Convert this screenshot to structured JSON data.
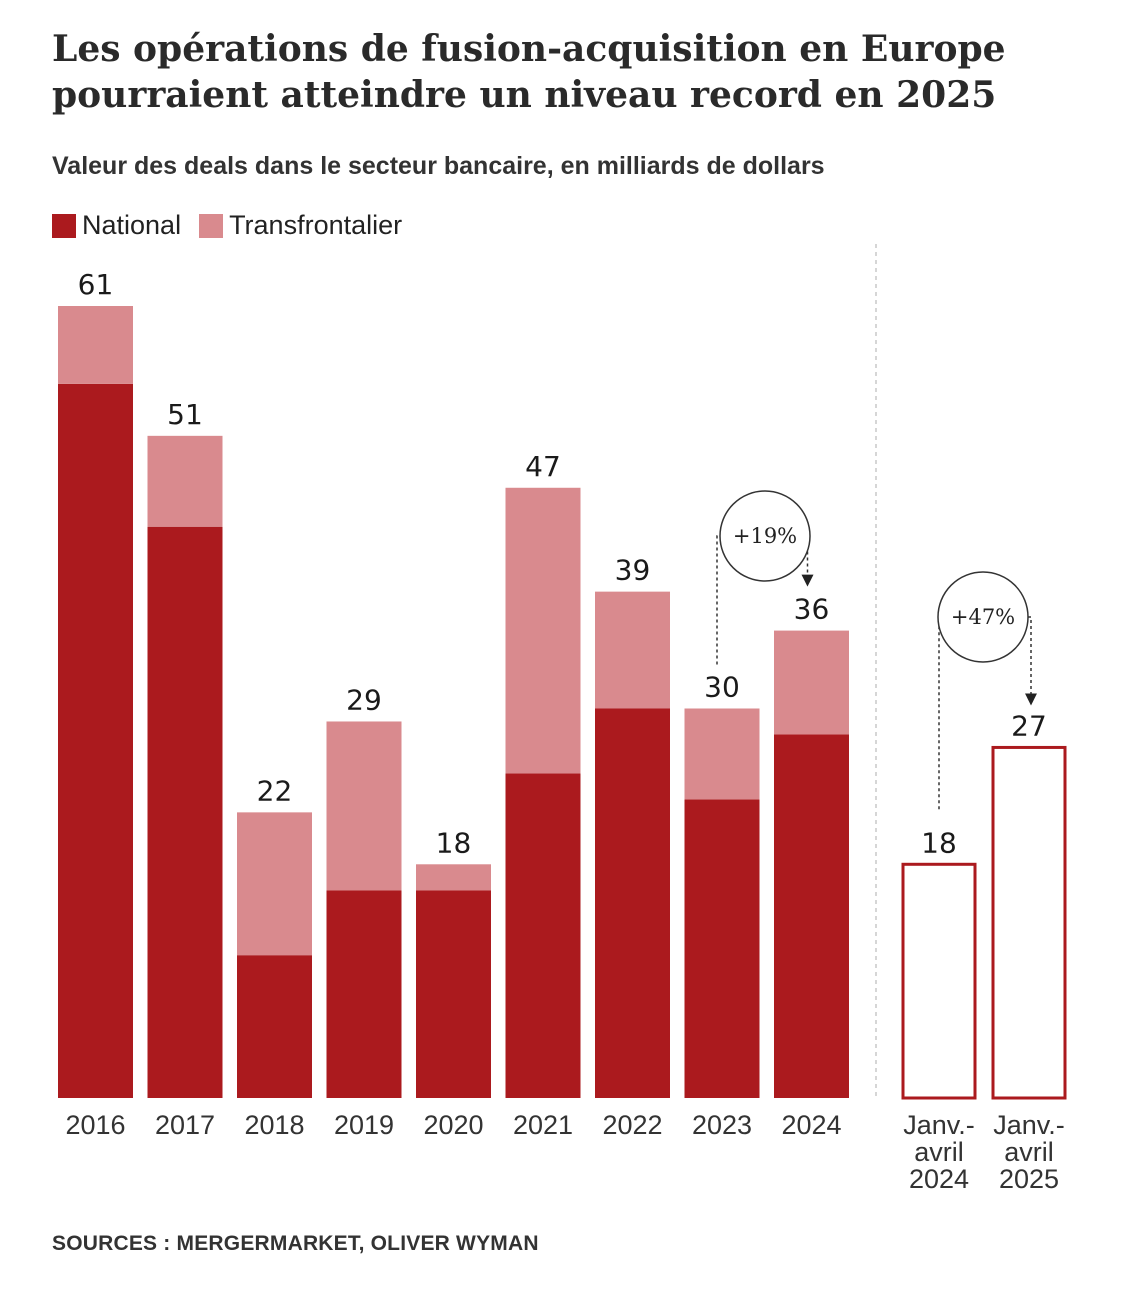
{
  "title": "Les opérations de fusion-acquisition en Europe pourraient atteindre un niveau record en 2025",
  "subtitle": "Valeur des deals dans le secteur bancaire, en milliards de dollars",
  "source": "SOURCES : MERGERMARKET, OLIVER WYMAN",
  "colors": {
    "national": "#ab1a1e",
    "cross_border": "#d98a8e",
    "outline": "#ab1a1e"
  },
  "chart_data": [
    {
      "type": "bar",
      "stacked": true,
      "categories": [
        "2016",
        "2017",
        "2018",
        "2019",
        "2020",
        "2021",
        "2022",
        "2023",
        "2024"
      ],
      "series": [
        {
          "name": "National",
          "values": [
            55,
            44,
            11,
            16,
            16,
            25,
            30,
            23,
            28
          ]
        },
        {
          "name": "Transfrontalier",
          "values": [
            6,
            7,
            11,
            13,
            2,
            22,
            9,
            7,
            8
          ]
        }
      ],
      "totals": [
        61,
        51,
        22,
        29,
        18,
        47,
        39,
        30,
        36
      ],
      "annotation": {
        "from": "2023",
        "to": "2024",
        "label": "+19%"
      },
      "ylim": [
        0,
        61
      ],
      "grid": false,
      "legend": "top-left"
    },
    {
      "type": "bar",
      "categories": [
        [
          "Janv.-",
          "avril",
          "2024"
        ],
        [
          "Janv.-",
          "avril",
          "2025"
        ]
      ],
      "values": [
        18,
        27
      ],
      "annotation": {
        "from": 0,
        "to": 1,
        "label": "+47%"
      },
      "ylim": [
        0,
        61
      ]
    }
  ]
}
